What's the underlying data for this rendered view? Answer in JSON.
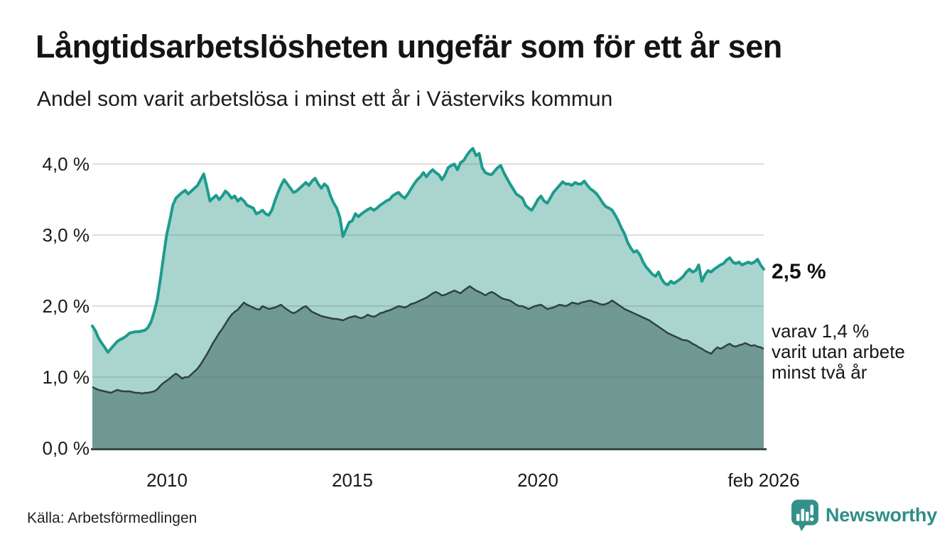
{
  "header": {
    "title": "Långtidsarbetslösheten ungefär som för ett år sen",
    "subtitle": "Andel som varit arbetslösa i minst ett år i Västerviks kommun"
  },
  "chart_data": {
    "type": "area",
    "title": "Långtidsarbetslösheten ungefär som för ett år sen",
    "subtitle": "Andel som varit arbetslösa i minst ett år i Västerviks kommun",
    "grid": true,
    "legend_position": "direct-labels-at-line-end",
    "x_axis": {
      "labels": [
        "2010",
        "2015",
        "2020",
        "feb 2026"
      ],
      "label_years": [
        2010,
        2015,
        2020,
        2026.083
      ],
      "start": "jan 2008",
      "end": "feb 2026",
      "freq": "monthly"
    },
    "y_axis": {
      "labels": [
        "4,0 %",
        "3,0 %",
        "2,0 %",
        "1,0 %",
        "0,0 %"
      ],
      "values": [
        4,
        3,
        2,
        1,
        0
      ],
      "unit": "%",
      "range": [
        0,
        4.35
      ]
    },
    "series": [
      {
        "name": "Andel arbetslösa minst ett år",
        "end_label": "2,5 %",
        "end_value": 2.5,
        "line_color": "#1d9b8e",
        "fill_color": "#a9d5ce",
        "start_year": 2008,
        "freq": "monthly",
        "values": [
          1.72,
          1.65,
          1.55,
          1.48,
          1.42,
          1.35,
          1.4,
          1.45,
          1.5,
          1.53,
          1.55,
          1.58,
          1.62,
          1.63,
          1.64,
          1.64,
          1.65,
          1.66,
          1.7,
          1.78,
          1.92,
          2.1,
          2.38,
          2.7,
          3.0,
          3.2,
          3.42,
          3.52,
          3.56,
          3.6,
          3.63,
          3.58,
          3.62,
          3.66,
          3.7,
          3.78,
          3.86,
          3.68,
          3.48,
          3.52,
          3.56,
          3.5,
          3.55,
          3.62,
          3.58,
          3.52,
          3.55,
          3.48,
          3.52,
          3.48,
          3.42,
          3.4,
          3.38,
          3.3,
          3.32,
          3.35,
          3.3,
          3.28,
          3.35,
          3.48,
          3.6,
          3.7,
          3.78,
          3.72,
          3.66,
          3.6,
          3.62,
          3.66,
          3.7,
          3.74,
          3.7,
          3.76,
          3.8,
          3.72,
          3.66,
          3.72,
          3.68,
          3.55,
          3.45,
          3.38,
          3.25,
          2.98,
          3.08,
          3.18,
          3.2,
          3.3,
          3.26,
          3.3,
          3.33,
          3.36,
          3.38,
          3.35,
          3.38,
          3.42,
          3.45,
          3.48,
          3.5,
          3.55,
          3.58,
          3.6,
          3.55,
          3.52,
          3.58,
          3.65,
          3.72,
          3.78,
          3.82,
          3.88,
          3.82,
          3.88,
          3.92,
          3.88,
          3.85,
          3.78,
          3.85,
          3.95,
          3.98,
          4.0,
          3.92,
          4.02,
          4.05,
          4.12,
          4.18,
          4.22,
          4.12,
          4.15,
          3.95,
          3.88,
          3.86,
          3.85,
          3.9,
          3.95,
          3.98,
          3.88,
          3.8,
          3.72,
          3.65,
          3.58,
          3.55,
          3.52,
          3.42,
          3.38,
          3.35,
          3.42,
          3.5,
          3.55,
          3.48,
          3.45,
          3.52,
          3.6,
          3.65,
          3.7,
          3.75,
          3.72,
          3.72,
          3.7,
          3.74,
          3.72,
          3.72,
          3.76,
          3.7,
          3.65,
          3.62,
          3.58,
          3.52,
          3.45,
          3.4,
          3.38,
          3.35,
          3.28,
          3.2,
          3.1,
          3.02,
          2.9,
          2.82,
          2.76,
          2.78,
          2.72,
          2.62,
          2.55,
          2.5,
          2.45,
          2.42,
          2.48,
          2.38,
          2.32,
          2.3,
          2.35,
          2.32,
          2.35,
          2.38,
          2.42,
          2.48,
          2.52,
          2.48,
          2.5,
          2.58,
          2.35,
          2.44,
          2.5,
          2.48,
          2.52,
          2.55,
          2.58,
          2.6,
          2.65,
          2.68,
          2.62,
          2.6,
          2.62,
          2.58,
          2.6,
          2.62,
          2.6,
          2.62,
          2.66,
          2.58,
          2.52
        ]
      },
      {
        "name": "Varav utan arbete minst två år",
        "end_value": 1.4,
        "annotation_lines": [
          "varav 1,4 %",
          "varit utan arbete",
          "minst två år"
        ],
        "line_color": "#30423e",
        "fill_color": "#6f9992",
        "start_year": 2008,
        "freq": "monthly",
        "values": [
          0.86,
          0.84,
          0.82,
          0.81,
          0.8,
          0.79,
          0.78,
          0.8,
          0.82,
          0.81,
          0.8,
          0.8,
          0.8,
          0.79,
          0.78,
          0.78,
          0.77,
          0.78,
          0.78,
          0.79,
          0.8,
          0.83,
          0.88,
          0.92,
          0.95,
          0.98,
          1.02,
          1.05,
          1.02,
          0.98,
          1.0,
          1.0,
          1.04,
          1.08,
          1.12,
          1.18,
          1.25,
          1.32,
          1.4,
          1.48,
          1.55,
          1.62,
          1.68,
          1.75,
          1.82,
          1.88,
          1.92,
          1.95,
          2.0,
          2.05,
          2.02,
          2.0,
          1.98,
          1.96,
          1.95,
          2.0,
          1.98,
          1.96,
          1.97,
          1.98,
          2.0,
          2.02,
          1.98,
          1.95,
          1.92,
          1.9,
          1.92,
          1.95,
          1.98,
          2.0,
          1.96,
          1.92,
          1.9,
          1.88,
          1.86,
          1.85,
          1.84,
          1.83,
          1.82,
          1.82,
          1.81,
          1.8,
          1.82,
          1.84,
          1.85,
          1.86,
          1.84,
          1.83,
          1.85,
          1.88,
          1.86,
          1.85,
          1.87,
          1.9,
          1.91,
          1.93,
          1.94,
          1.96,
          1.98,
          2.0,
          1.99,
          1.98,
          2.0,
          2.03,
          2.04,
          2.06,
          2.08,
          2.1,
          2.12,
          2.15,
          2.18,
          2.2,
          2.18,
          2.15,
          2.16,
          2.18,
          2.2,
          2.22,
          2.2,
          2.18,
          2.22,
          2.25,
          2.28,
          2.25,
          2.22,
          2.2,
          2.18,
          2.15,
          2.18,
          2.2,
          2.18,
          2.15,
          2.12,
          2.1,
          2.09,
          2.08,
          2.05,
          2.02,
          2.0,
          2.0,
          1.98,
          1.96,
          1.98,
          2.0,
          2.01,
          2.02,
          1.99,
          1.96,
          1.97,
          1.98,
          2.0,
          2.02,
          2.01,
          2.0,
          2.02,
          2.05,
          2.04,
          2.03,
          2.05,
          2.06,
          2.07,
          2.08,
          2.06,
          2.05,
          2.03,
          2.02,
          2.03,
          2.05,
          2.08,
          2.05,
          2.02,
          1.99,
          1.96,
          1.94,
          1.92,
          1.9,
          1.88,
          1.86,
          1.84,
          1.82,
          1.8,
          1.77,
          1.74,
          1.71,
          1.68,
          1.65,
          1.62,
          1.6,
          1.58,
          1.56,
          1.54,
          1.52,
          1.52,
          1.5,
          1.47,
          1.45,
          1.42,
          1.4,
          1.37,
          1.35,
          1.33,
          1.38,
          1.42,
          1.4,
          1.42,
          1.45,
          1.47,
          1.44,
          1.43,
          1.45,
          1.46,
          1.48,
          1.46,
          1.44,
          1.45,
          1.43,
          1.42,
          1.4
        ]
      }
    ]
  },
  "footer": {
    "source": "Källa: Arbetsförmedlingen",
    "brand": "Newsworthy"
  },
  "colors": {
    "background": "#ffffff",
    "text": "#161616",
    "gridline": "#e0e0e0",
    "axis_line": "#3c4a47",
    "accent_teal": "#1d9b8e",
    "light_fill": "#a9d5ce",
    "dark_fill": "#6f9992",
    "dark_line": "#30423e",
    "brand_teal": "#2f8e88"
  }
}
